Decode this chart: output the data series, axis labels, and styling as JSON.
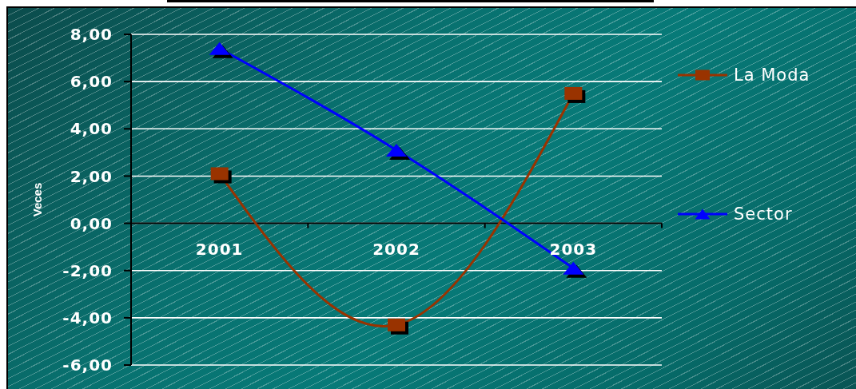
{
  "chart_data": {
    "type": "line",
    "ylabel": "Veces",
    "categories": [
      "2001",
      "2002",
      "2003"
    ],
    "series": [
      {
        "name": "La Moda",
        "color": "#993300",
        "values": [
          2.1,
          -4.3,
          5.5
        ],
        "marker": "square"
      },
      {
        "name": "Sector",
        "color": "#0000ff",
        "values": [
          7.4,
          3.1,
          -1.9
        ],
        "marker": "triangle"
      }
    ],
    "ylim": [
      -6,
      8
    ],
    "yticks": [
      {
        "value": -6,
        "label": "-6,00"
      },
      {
        "value": -4,
        "label": "-4,00"
      },
      {
        "value": -2,
        "label": "-2,00"
      },
      {
        "value": 0,
        "label": "0,00"
      },
      {
        "value": 2,
        "label": "2,00"
      },
      {
        "value": 4,
        "label": "4,00"
      },
      {
        "value": 6,
        "label": "6,00"
      },
      {
        "value": 8,
        "label": "8,00"
      }
    ],
    "grid": "y",
    "legend": "right",
    "line_style": "solid"
  }
}
